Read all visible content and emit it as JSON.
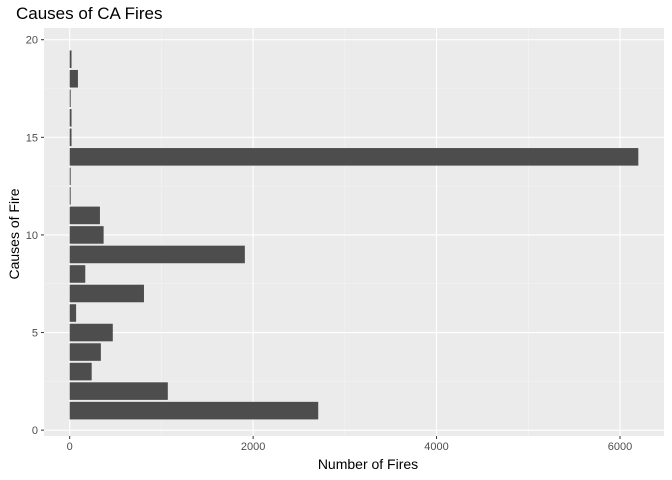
{
  "chart_data": {
    "type": "bar",
    "orientation": "horizontal",
    "title": "Causes of CA Fires",
    "xlabel": "Number of Fires",
    "ylabel": "Causes of Fire",
    "categories": [
      1,
      2,
      3,
      4,
      5,
      6,
      7,
      8,
      9,
      10,
      11,
      12,
      13,
      14,
      15,
      16,
      17,
      18,
      19
    ],
    "values": [
      2710,
      1070,
      240,
      340,
      470,
      70,
      810,
      170,
      1910,
      370,
      330,
      10,
      10,
      6200,
      20,
      20,
      0,
      90,
      20
    ],
    "xlim": [
      -280,
      6480
    ],
    "ylim": [
      -0.3,
      20.6
    ],
    "x_ticks": [
      0,
      2000,
      4000,
      6000
    ],
    "x_tick_labels": [
      "0",
      "2000",
      "4000",
      "6000"
    ],
    "y_ticks": [
      0,
      5,
      10,
      15,
      20
    ],
    "y_tick_labels": [
      "0",
      "5",
      "10",
      "15",
      "20"
    ],
    "grid": true,
    "legend": "none",
    "colors": {
      "panel_background": "#EBEBEB",
      "grid_major": "#FFFFFF",
      "grid_minor": "#F4F4F4",
      "bar": "#4D4D4D",
      "tick_label": "#4D4D4D",
      "tick_mark": "#333333"
    }
  }
}
